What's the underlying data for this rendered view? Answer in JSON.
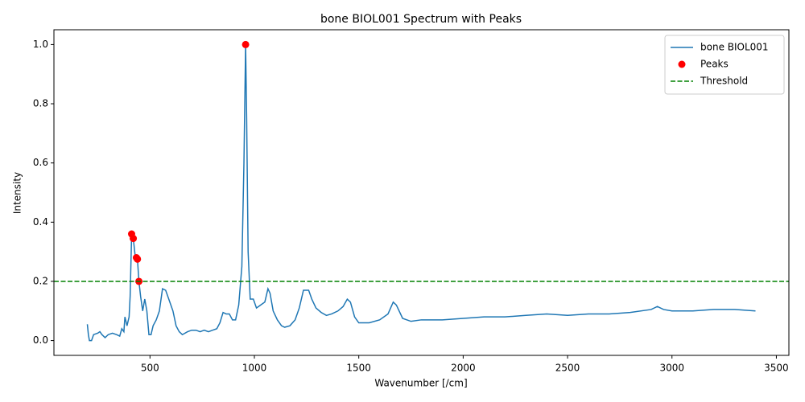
{
  "chart_data": {
    "type": "line",
    "title": "bone BIOL001 Spectrum with Peaks",
    "x_label": "Wavenumber [/cm]",
    "y_label": "Intensity",
    "xlim": [
      40,
      3560
    ],
    "ylim": [
      -0.05,
      1.05
    ],
    "xticks": [
      500,
      1000,
      1500,
      2000,
      2500,
      3000,
      3500
    ],
    "yticks": [
      {
        "value": 0,
        "label": "0.0"
      },
      0.2,
      0.4,
      0.6,
      0.8,
      {
        "value": 1,
        "label": "1.0"
      }
    ],
    "grid": false,
    "legend": "upper right",
    "series": [
      {
        "name": "bone BIOL001",
        "style": "line",
        "color": "#1f77b4",
        "x": [
          200,
          205,
          210,
          220,
          230,
          250,
          260,
          270,
          285,
          300,
          320,
          340,
          355,
          365,
          375,
          380,
          390,
          400,
          405,
          412,
          420,
          430,
          440,
          447,
          455,
          465,
          475,
          485,
          495,
          505,
          515,
          530,
          545,
          560,
          575,
          590,
          610,
          625,
          640,
          655,
          680,
          700,
          720,
          740,
          760,
          780,
          800,
          820,
          835,
          850,
          865,
          880,
          895,
          910,
          925,
          940,
          950,
          958,
          963,
          970,
          980,
          995,
          1010,
          1030,
          1050,
          1065,
          1075,
          1090,
          1110,
          1130,
          1145,
          1170,
          1195,
          1215,
          1235,
          1260,
          1275,
          1295,
          1320,
          1345,
          1370,
          1400,
          1425,
          1445,
          1460,
          1480,
          1500,
          1550,
          1600,
          1640,
          1665,
          1680,
          1710,
          1750,
          1800,
          1900,
          2000,
          2100,
          2200,
          2300,
          2400,
          2500,
          2600,
          2700,
          2800,
          2900,
          2930,
          2960,
          3000,
          3100,
          3200,
          3300,
          3400
        ],
        "values": [
          0.055,
          0.02,
          0.0,
          0.0,
          0.02,
          0.025,
          0.03,
          0.02,
          0.01,
          0.02,
          0.025,
          0.02,
          0.015,
          0.04,
          0.03,
          0.08,
          0.05,
          0.08,
          0.15,
          0.355,
          0.345,
          0.28,
          0.275,
          0.2,
          0.15,
          0.1,
          0.14,
          0.1,
          0.02,
          0.02,
          0.05,
          0.07,
          0.1,
          0.175,
          0.17,
          0.14,
          0.1,
          0.05,
          0.03,
          0.02,
          0.03,
          0.035,
          0.035,
          0.03,
          0.035,
          0.03,
          0.035,
          0.04,
          0.06,
          0.095,
          0.09,
          0.09,
          0.07,
          0.07,
          0.12,
          0.25,
          0.6,
          1.0,
          0.75,
          0.3,
          0.14,
          0.14,
          0.11,
          0.12,
          0.13,
          0.175,
          0.16,
          0.1,
          0.07,
          0.05,
          0.045,
          0.05,
          0.07,
          0.11,
          0.17,
          0.17,
          0.14,
          0.11,
          0.095,
          0.085,
          0.09,
          0.1,
          0.115,
          0.14,
          0.13,
          0.08,
          0.06,
          0.06,
          0.07,
          0.09,
          0.13,
          0.12,
          0.075,
          0.065,
          0.07,
          0.07,
          0.075,
          0.08,
          0.08,
          0.085,
          0.09,
          0.085,
          0.09,
          0.09,
          0.095,
          0.105,
          0.115,
          0.105,
          0.1,
          0.1,
          0.105,
          0.105,
          0.1
        ]
      },
      {
        "name": "Peaks",
        "style": "scatter",
        "color": "#ff0000",
        "x": [
          412,
          420,
          435,
          440,
          447,
          958
        ],
        "values": [
          0.36,
          0.345,
          0.28,
          0.275,
          0.2,
          1.0
        ]
      }
    ],
    "threshold": {
      "name": "Threshold",
      "value": 0.2,
      "color": "#008000",
      "dashed": true
    }
  }
}
